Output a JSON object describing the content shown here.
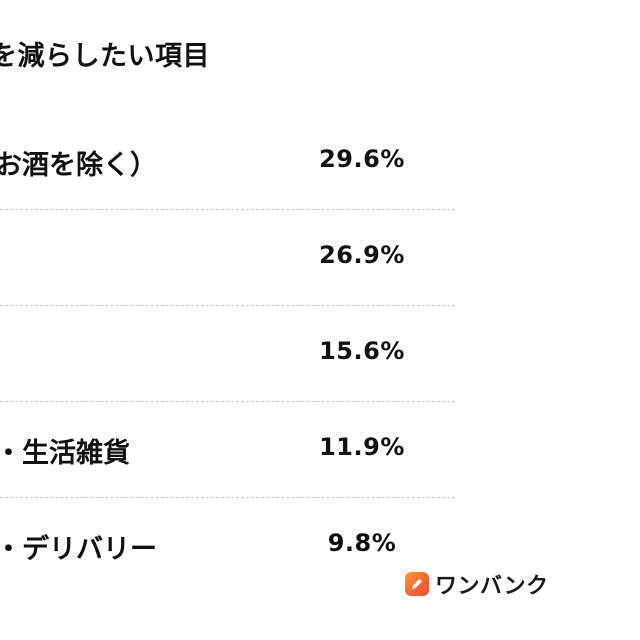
{
  "heading": "を減らしたい項目",
  "rows": [
    {
      "label": "お酒を除く）",
      "value": "29.6%"
    },
    {
      "label": "",
      "value": "26.9%"
    },
    {
      "label": "",
      "value": "15.6%"
    },
    {
      "label": "・生活雑貨",
      "value": "11.9%"
    },
    {
      "label": "・デリバリー",
      "value": "9.8%"
    }
  ],
  "brand": {
    "name": "ワンバンク",
    "icon": "pencil-icon",
    "color": "#f2632d"
  }
}
